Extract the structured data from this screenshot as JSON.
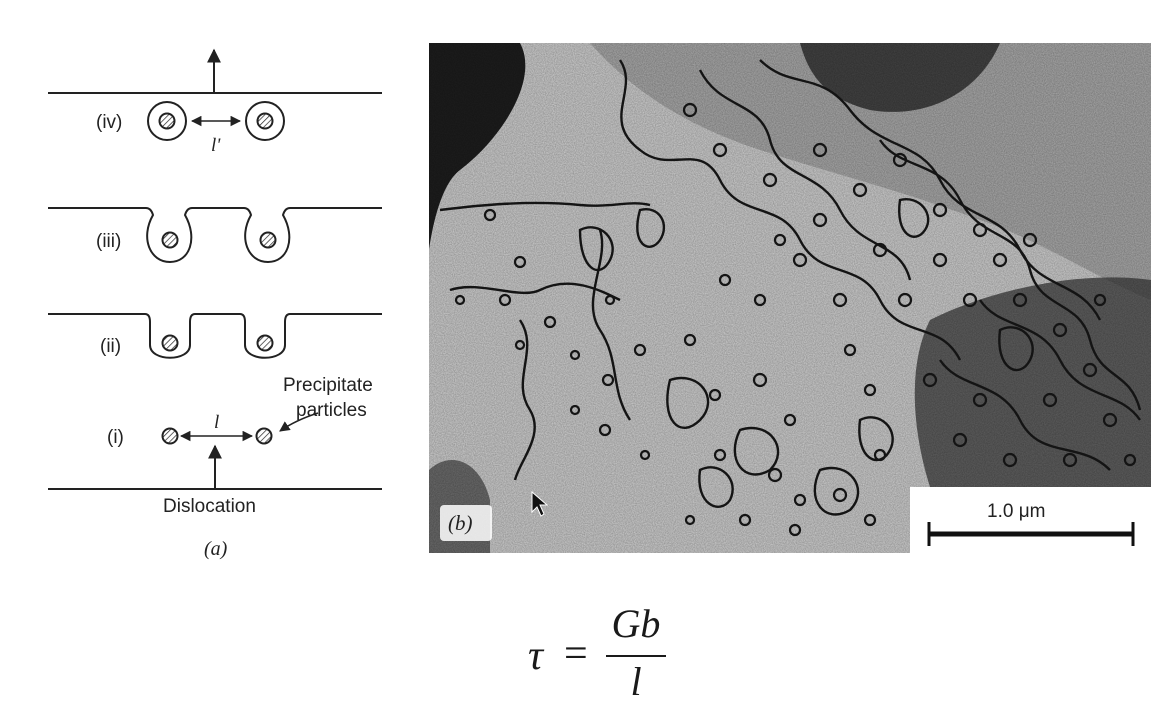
{
  "diagram": {
    "stages": [
      {
        "label": "(iv)"
      },
      {
        "label": "(iii)"
      },
      {
        "label": "(ii)"
      },
      {
        "label": "(i)"
      }
    ],
    "spacing_label_upper": "l'",
    "spacing_label_lower": "l",
    "precipitate_label_line1": "Precipitate",
    "precipitate_label_line2": "particles",
    "dislocation_label": "Dislocation",
    "panel_a_label": "(a)"
  },
  "micrograph": {
    "panel_b_label": "(b)",
    "scale_bar_label": "1.0 μm"
  },
  "formula": {
    "lhs": "τ",
    "equals": "=",
    "numerator": "Gb",
    "denominator": "l"
  },
  "colors": {
    "ink": "#222222",
    "micrograph_background": "#d2d2d2",
    "micrograph_dark": "#141414"
  }
}
